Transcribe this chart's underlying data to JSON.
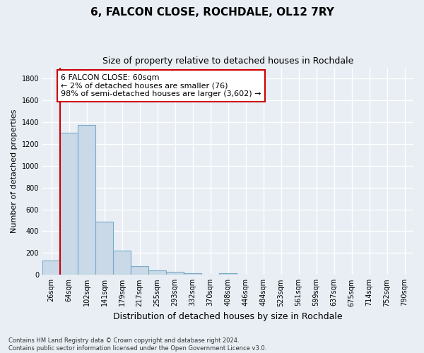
{
  "title": "6, FALCON CLOSE, ROCHDALE, OL12 7RY",
  "subtitle": "Size of property relative to detached houses in Rochdale",
  "xlabel": "Distribution of detached houses by size in Rochdale",
  "ylabel": "Number of detached properties",
  "categories": [
    "26sqm",
    "64sqm",
    "102sqm",
    "141sqm",
    "179sqm",
    "217sqm",
    "255sqm",
    "293sqm",
    "332sqm",
    "370sqm",
    "408sqm",
    "446sqm",
    "484sqm",
    "523sqm",
    "561sqm",
    "599sqm",
    "637sqm",
    "675sqm",
    "714sqm",
    "752sqm",
    "790sqm"
  ],
  "values": [
    130,
    1300,
    1370,
    490,
    225,
    80,
    43,
    28,
    18,
    0,
    18,
    0,
    0,
    0,
    0,
    0,
    0,
    0,
    0,
    0,
    0
  ],
  "bar_color": "#c9d9e8",
  "bar_edge_color": "#7aaac8",
  "ylim": [
    0,
    1900
  ],
  "yticks": [
    0,
    200,
    400,
    600,
    800,
    1000,
    1200,
    1400,
    1600,
    1800
  ],
  "property_line_color": "#cc0000",
  "annotation_text": "6 FALCON CLOSE: 60sqm\n← 2% of detached houses are smaller (76)\n98% of semi-detached houses are larger (3,602) →",
  "annotation_box_color": "#ffffff",
  "annotation_box_edge_color": "#cc0000",
  "footnote": "Contains HM Land Registry data © Crown copyright and database right 2024.\nContains public sector information licensed under the Open Government Licence v3.0.",
  "background_color": "#e8eef4",
  "grid_color": "#ffffff",
  "title_fontsize": 11,
  "subtitle_fontsize": 9,
  "xlabel_fontsize": 9,
  "ylabel_fontsize": 8,
  "tick_fontsize": 7,
  "annotation_fontsize": 8,
  "footnote_fontsize": 6
}
